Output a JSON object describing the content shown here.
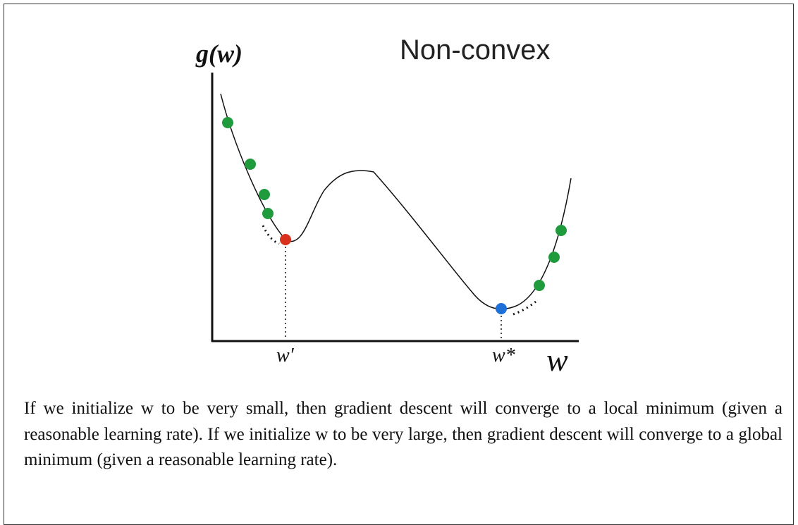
{
  "figure": {
    "y_label": "g(w)",
    "title": "Non-convex",
    "local_min_label": "w′",
    "global_min_label": "w*",
    "x_label": "w"
  },
  "caption": "If we initialize w to be very small, then gradient descent will converge to a local minimum (given a reasonable learning rate). If we initialize w to be very large, then gradient descent will converge to a global minimum (given a reasonable learning rate)."
}
